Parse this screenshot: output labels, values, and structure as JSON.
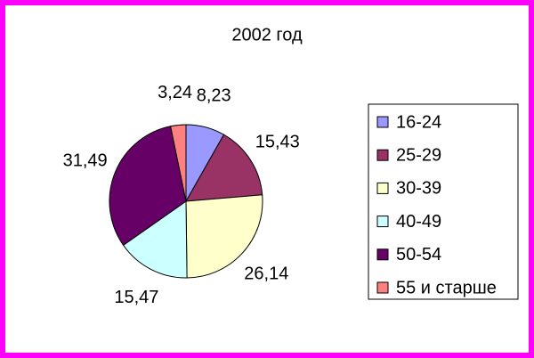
{
  "chart_data": {
    "type": "pie",
    "title": "2002 год",
    "categories": [
      "16-24",
      "25-29",
      "30-39",
      "40-49",
      "50-54",
      "55 и старше"
    ],
    "values": [
      8.23,
      15.43,
      26.14,
      15.47,
      31.49,
      3.24
    ],
    "value_labels": [
      "8,23",
      "15,43",
      "26,14",
      "15,47",
      "31,49",
      "3,24"
    ],
    "colors": [
      "#9999ff",
      "#993366",
      "#ffffcc",
      "#ccffff",
      "#660066",
      "#ff8080"
    ],
    "legend": "right"
  }
}
